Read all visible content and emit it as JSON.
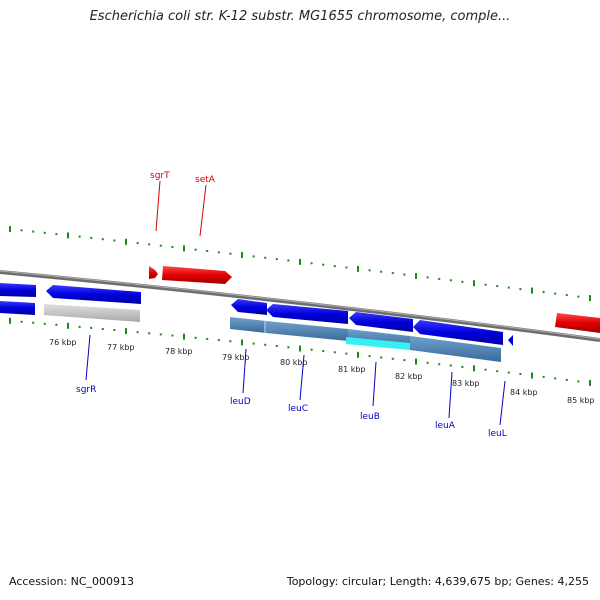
{
  "title": "Escherichia coli str. K-12 substr. MG1655 chromosome, comple...",
  "footer": {
    "accession": "Accession: NC_000913",
    "summary": "Topology: circular; Length: 4,639,675 bp; Genes: 4,255"
  },
  "kbp_labels": [
    "76 kbp",
    "77 kbp",
    "78 kbp",
    "79 kbp",
    "80 kbp",
    "81 kbp",
    "82 kbp",
    "83 kbp",
    "84 kbp",
    "85 kbp"
  ],
  "genes_forward": [
    "sgrT",
    "setA"
  ],
  "genes_reverse": [
    "sgrR",
    "leuD",
    "leuC",
    "leuB",
    "leuA",
    "leuL"
  ],
  "colors": {
    "forward_cds": "#e00000",
    "reverse_cds": "#0000e6",
    "gene_region": "#4a7fb0",
    "highlight": "#35f0f0",
    "ruler": "#1a8a1a",
    "backbone": "#888888"
  }
}
